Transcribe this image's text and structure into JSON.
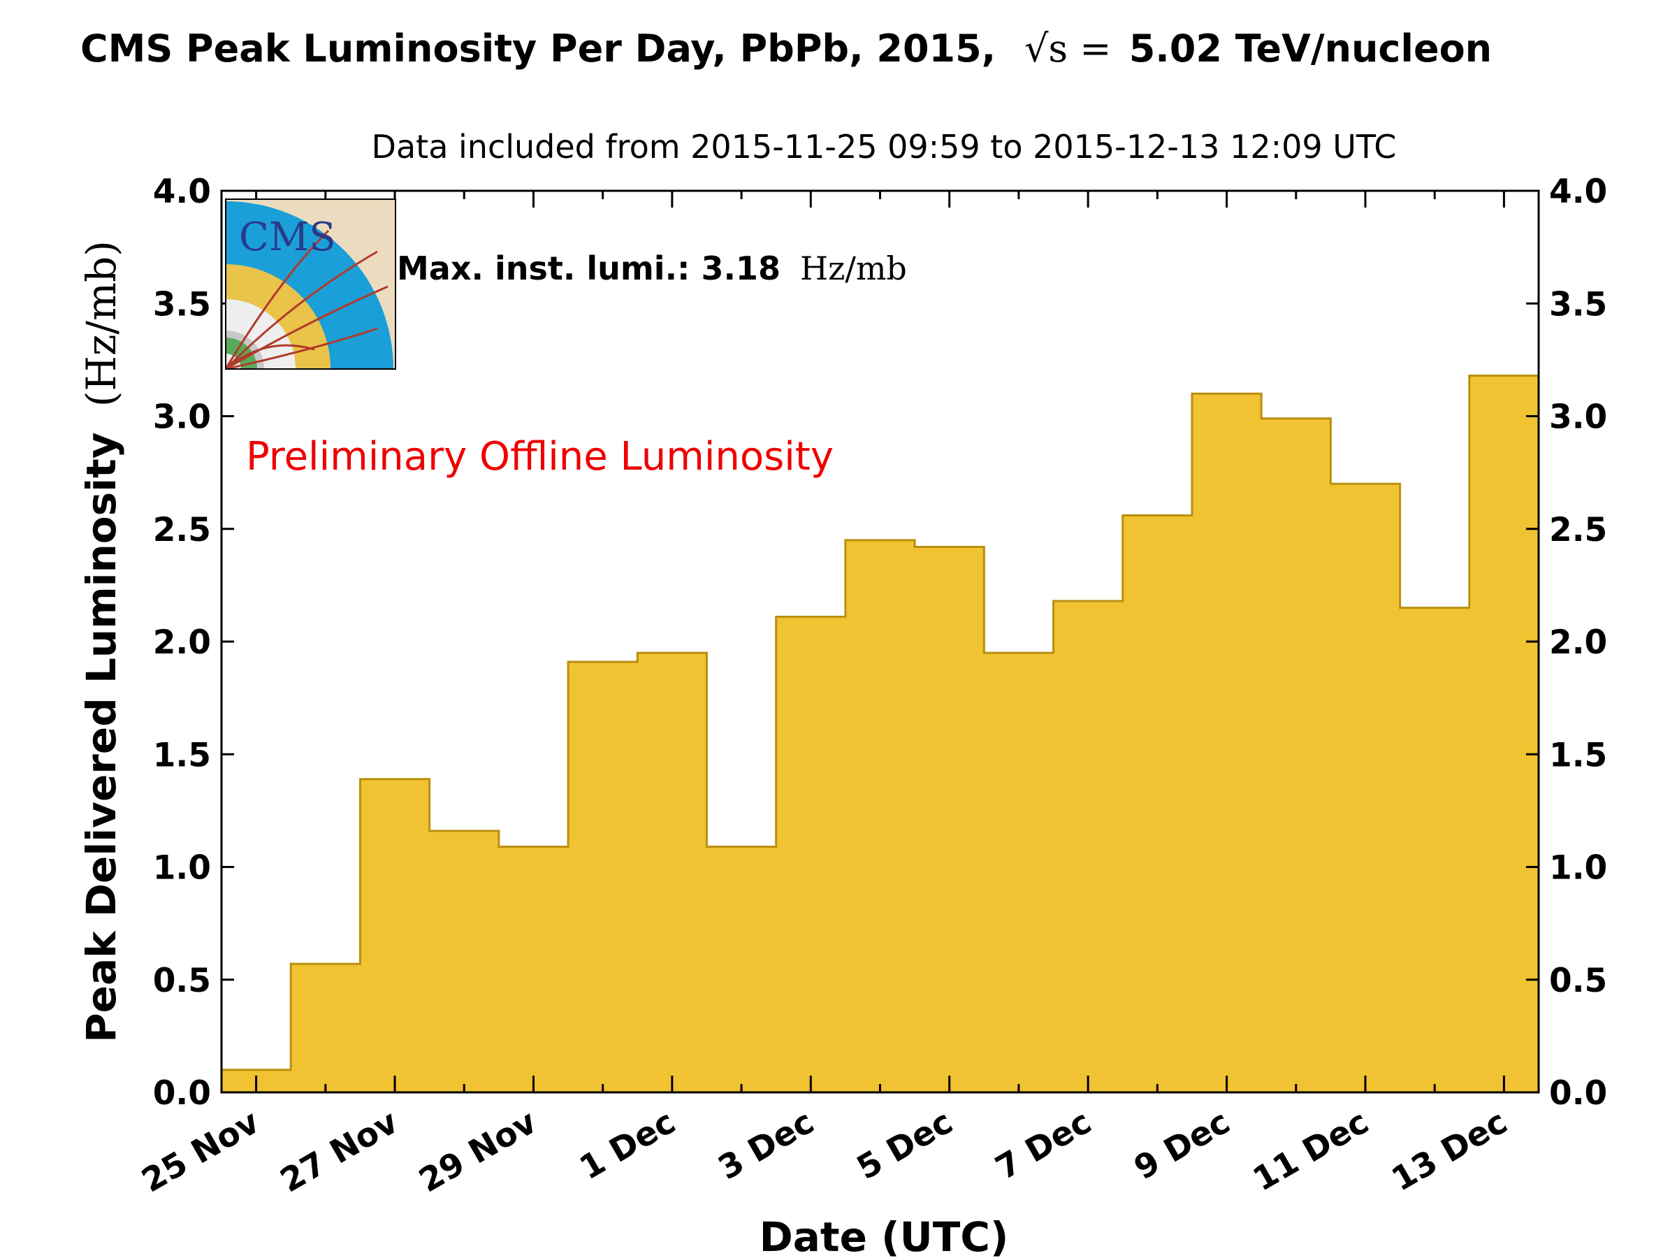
{
  "chart_data": {
    "type": "bar",
    "title": "CMS Peak Luminosity Per Day, PbPb, 2015,",
    "title_math": "√s = ",
    "title_tail": "5.02 TeV/nucleon",
    "subtitle": "Data included from 2015-11-25 09:59 to 2015-12-13 12:09 UTC",
    "xlabel": "Date (UTC)",
    "ylabel": "Peak Delivered Luminosity",
    "ylabel_unit": "(Hz/mb)",
    "ylim": [
      0.0,
      4.0
    ],
    "yticks": [
      "0.0",
      "0.5",
      "1.0",
      "1.5",
      "2.0",
      "2.5",
      "3.0",
      "3.5",
      "4.0"
    ],
    "xtick_labels": [
      "25 Nov",
      "27 Nov",
      "29 Nov",
      "1 Dec",
      "3 Dec",
      "5 Dec",
      "7 Dec",
      "9 Dec",
      "11 Dec",
      "13 Dec"
    ],
    "categories": [
      "2015-11-25",
      "2015-11-26",
      "2015-11-27",
      "2015-11-28",
      "2015-11-29",
      "2015-11-30",
      "2015-12-01",
      "2015-12-02",
      "2015-12-03",
      "2015-12-04",
      "2015-12-05",
      "2015-12-06",
      "2015-12-07",
      "2015-12-08",
      "2015-12-09",
      "2015-12-10",
      "2015-12-11",
      "2015-12-12",
      "2015-12-13"
    ],
    "values": [
      0.1,
      0.57,
      1.39,
      1.16,
      1.09,
      1.91,
      1.95,
      1.09,
      2.11,
      2.45,
      2.42,
      1.95,
      2.18,
      2.56,
      3.1,
      2.99,
      2.7,
      2.15,
      3.18
    ],
    "fill_color": "#f1c232",
    "edge_color": "#b8900f",
    "annotation_label": "Max. inst. lumi.: 3.18",
    "annotation_unit": "Hz/mb",
    "preliminary_text": "Preliminary Offline Luminosity",
    "preliminary_color": "#ee0000",
    "logo_text": "CMS",
    "logo_icon": "cms-logo-icon",
    "grid": false
  }
}
